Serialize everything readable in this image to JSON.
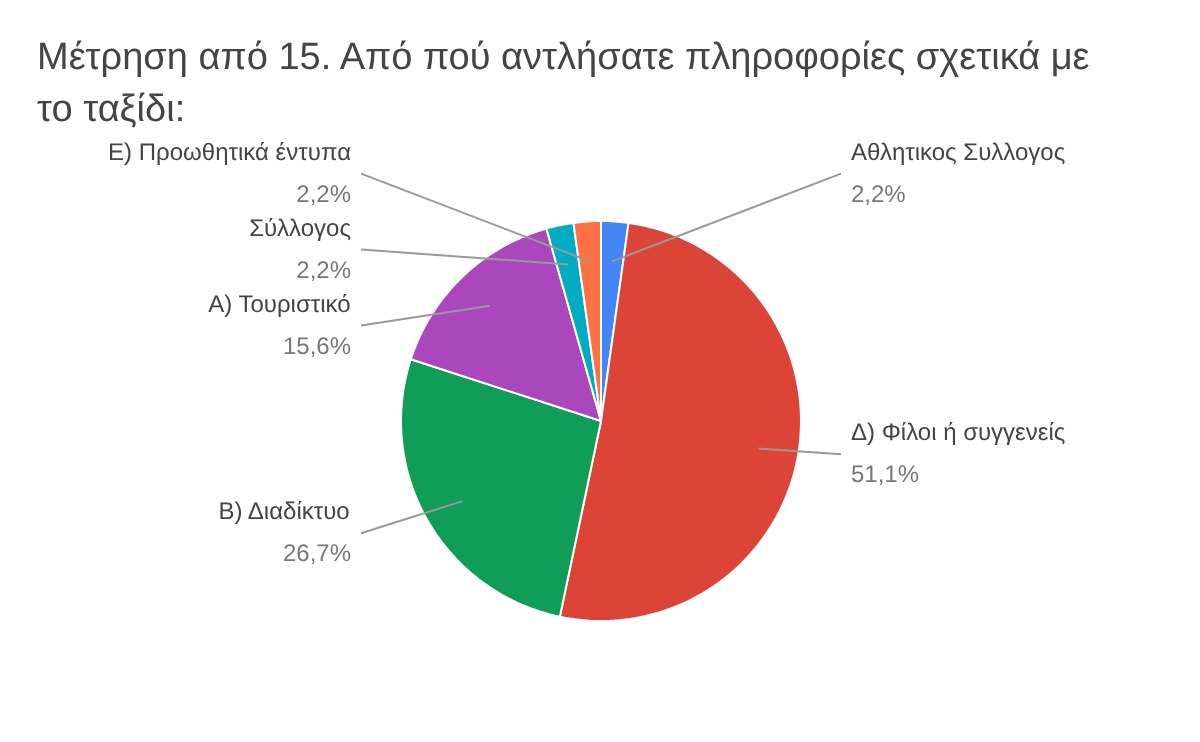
{
  "chart_data": {
    "type": "pie",
    "title": "Μέτρηση από 15. Από πού αντλήσατε πληροφορίες σχετικά με το ταξίδι:",
    "categories": [
      "Αθλητικος Συλλογος",
      "Δ) Φίλοι ή συγγενείς",
      "Β) Διαδίκτυο",
      "Α) Τουριστικό",
      "Σύλλογος",
      "Ε) Προωθητικά έντυπα"
    ],
    "values": [
      2.2,
      51.1,
      26.7,
      15.6,
      2.2,
      2.2
    ],
    "colors": [
      "#4285f4",
      "#db4437",
      "#0f9d58",
      "#ab47bc",
      "#00acc1",
      "#ff7043"
    ],
    "value_labels": [
      "2,2%",
      "51,1%",
      "26,7%",
      "15,6%",
      "2,2%",
      "2,2%"
    ]
  }
}
